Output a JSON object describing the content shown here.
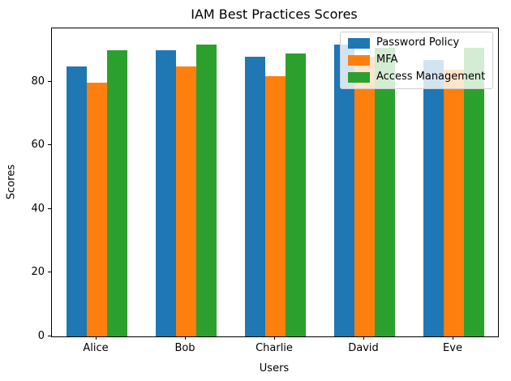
{
  "chart_data": {
    "type": "bar",
    "title": "IAM Best Practices Scores",
    "xlabel": "Users",
    "ylabel": "Scores",
    "categories": [
      "Alice",
      "Bob",
      "Charlie",
      "David",
      "Eve"
    ],
    "series": [
      {
        "name": "Password Policy",
        "color": "#1f77b4",
        "values": [
          85,
          90,
          88,
          92,
          87
        ]
      },
      {
        "name": "MFA",
        "color": "#ff7f0e",
        "values": [
          80,
          85,
          82,
          88,
          84
        ]
      },
      {
        "name": "Access Management",
        "color": "#2ca02c",
        "values": [
          90,
          92,
          89,
          91,
          91
        ]
      }
    ],
    "yticks": [
      0,
      20,
      40,
      60,
      80
    ],
    "ylim": [
      0,
      97
    ],
    "legend_position": "upper right",
    "grid": false
  }
}
